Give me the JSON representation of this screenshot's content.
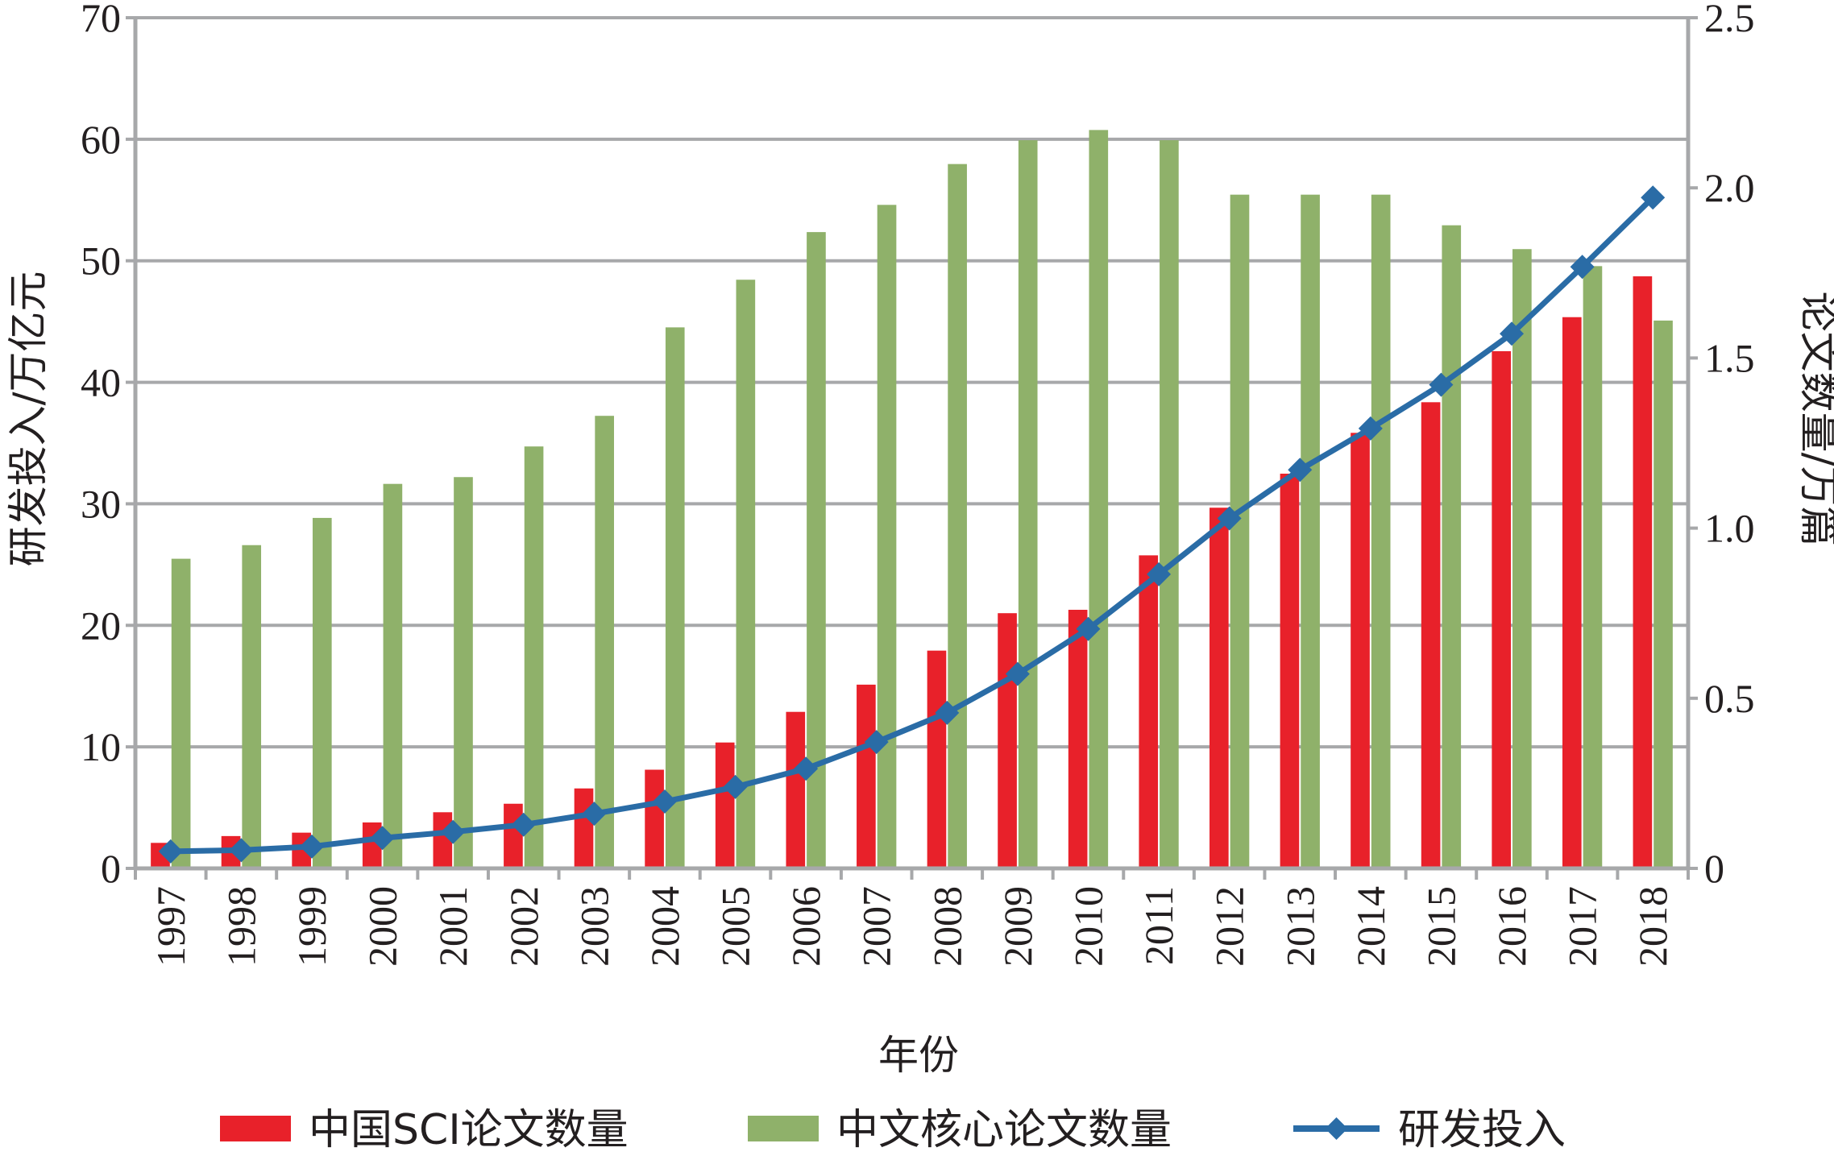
{
  "chart_data": {
    "type": "bar",
    "categories": [
      "1997",
      "1998",
      "1999",
      "2000",
      "2001",
      "2002",
      "2003",
      "2004",
      "2005",
      "2006",
      "2007",
      "2008",
      "2009",
      "2010",
      "2011",
      "2012",
      "2013",
      "2014",
      "2015",
      "2016",
      "2017",
      "2018"
    ],
    "series": [
      {
        "name": "中国SCI论文数量",
        "type": "bar",
        "axis": "right",
        "color": "#e8212a",
        "values": [
          0.075,
          0.095,
          0.105,
          0.135,
          0.165,
          0.19,
          0.235,
          0.29,
          0.37,
          0.46,
          0.54,
          0.64,
          0.75,
          0.76,
          0.92,
          1.06,
          1.16,
          1.28,
          1.37,
          1.52,
          1.62,
          1.74
        ]
      },
      {
        "name": "中文核心论文数量",
        "type": "bar",
        "axis": "right",
        "color": "#8fb16a",
        "values": [
          0.91,
          0.95,
          1.03,
          1.13,
          1.15,
          1.24,
          1.33,
          1.59,
          1.73,
          1.87,
          1.95,
          2.07,
          2.14,
          2.17,
          2.14,
          1.98,
          1.98,
          1.98,
          1.89,
          1.82,
          1.77,
          1.61
        ]
      },
      {
        "name": "研发投入",
        "type": "line",
        "axis": "left",
        "color": "#2a6ca6",
        "values": [
          1.4,
          1.5,
          1.8,
          2.5,
          3.0,
          3.6,
          4.5,
          5.5,
          6.7,
          8.2,
          10.4,
          12.8,
          16.0,
          19.7,
          24.2,
          28.8,
          32.8,
          36.2,
          39.8,
          44.0,
          49.5,
          55.2
        ]
      }
    ],
    "left_axis": {
      "label": "研发投入/万亿元",
      "min": 0,
      "max": 70,
      "ticks": [
        "0",
        "10",
        "20",
        "30",
        "40",
        "50",
        "60",
        "70"
      ]
    },
    "right_axis": {
      "label": "论文数量/万篇",
      "min": 0,
      "max": 2.5,
      "ticks": [
        "0",
        "0.5",
        "1.0",
        "1.5",
        "2.0",
        "2.5"
      ]
    },
    "xlabel": "年份",
    "grid": true,
    "legend_position": "bottom"
  }
}
